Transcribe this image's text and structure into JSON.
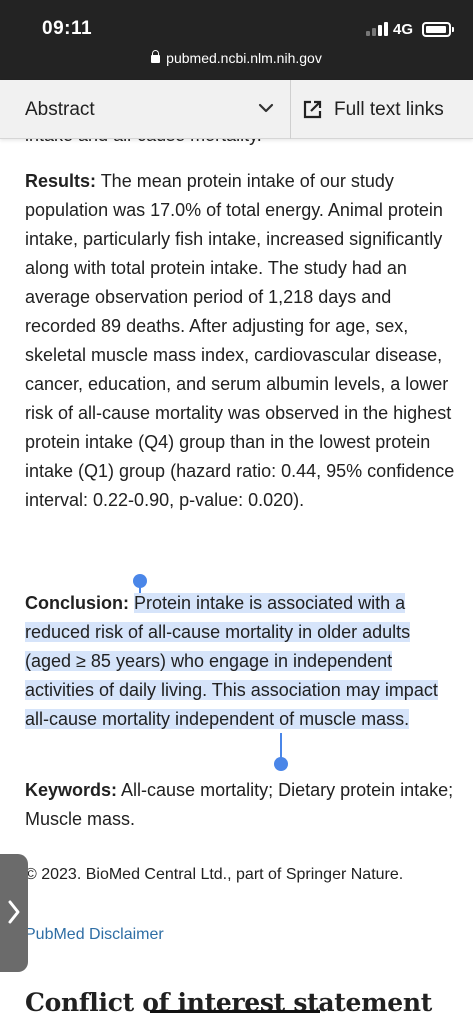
{
  "status_bar": {
    "time": "09:11",
    "network": "4G",
    "url": "pubmed.ncbi.nlm.nih.gov"
  },
  "nav": {
    "section_label": "Abstract",
    "full_text_label": "Full text links"
  },
  "article": {
    "cut_off_line": "intake and all-cause mortality.",
    "results_heading": "Results:",
    "results_text": " The mean protein intake of our study population was 17.0% of total energy. Animal protein intake, particularly fish intake, increased significantly along with total protein intake. The study had an average observation period of 1,218 days and recorded 89 deaths. After adjusting for age, sex, skeletal muscle mass index, cardiovascular disease, cancer, education, and serum albumin levels, a lower risk of all-cause mortality was observed in the highest protein intake (Q4) group than in the lowest protein intake (Q1) group (hazard ratio: 0.44, 95% confidence interval: 0.22-0.90, p-value: 0.020).",
    "conclusion_heading": "Conclusion:",
    "conclusion_text": "Protein intake is associated with a reduced risk of all-cause mortality in older adults (aged ≥ 85 years) who engage in independent activities of daily living. This association may impact all-cause mortality independent of muscle mass.",
    "keywords_heading": "Keywords:",
    "keywords_text": " All-cause mortality; Dietary protein intake; Muscle mass.",
    "copyright": "© 2023. BioMed Central Ltd., part of Springer Nature.",
    "disclaimer_link": "PubMed Disclaimer",
    "next_section_heading": "Conflict of interest statement"
  },
  "colors": {
    "status_bar_bg": "#232323",
    "selection_highlight": "#d6e4fa",
    "selection_handle": "#4a86e8",
    "link": "#2f6ea5"
  },
  "icons": {
    "lock": "lock-icon",
    "chevron": "chevron-down-icon",
    "external": "external-link-icon",
    "side_tab": "chevron-right-icon"
  }
}
